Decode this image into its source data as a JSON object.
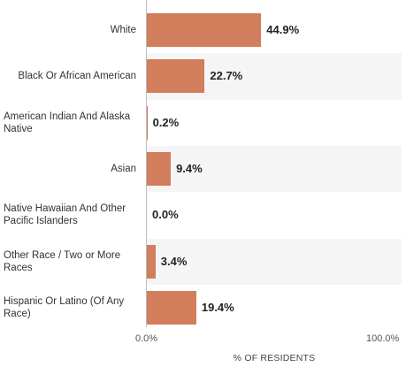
{
  "chart_data": {
    "type": "bar",
    "orientation": "horizontal",
    "categories": [
      "White",
      "Black Or African American",
      "American Indian And Alaska Native",
      "Asian",
      "Native Hawaiian And Other Pacific Islanders",
      "Other Race / Two or More Races",
      "Hispanic Or Latino (Of Any Race)"
    ],
    "values": [
      44.9,
      22.7,
      0.2,
      9.4,
      0.0,
      3.4,
      19.4
    ],
    "value_labels": [
      "44.9%",
      "22.7%",
      "0.2%",
      "9.4%",
      "0.0%",
      "3.4%",
      "19.4%"
    ],
    "xlim": [
      0,
      100
    ],
    "xticks": [
      "0.0%",
      "100.0%"
    ],
    "xlabel": "% OF RESIDENTS",
    "bar_color": "#d27d5c",
    "band_color": "#f5f5f5",
    "grid": false
  }
}
